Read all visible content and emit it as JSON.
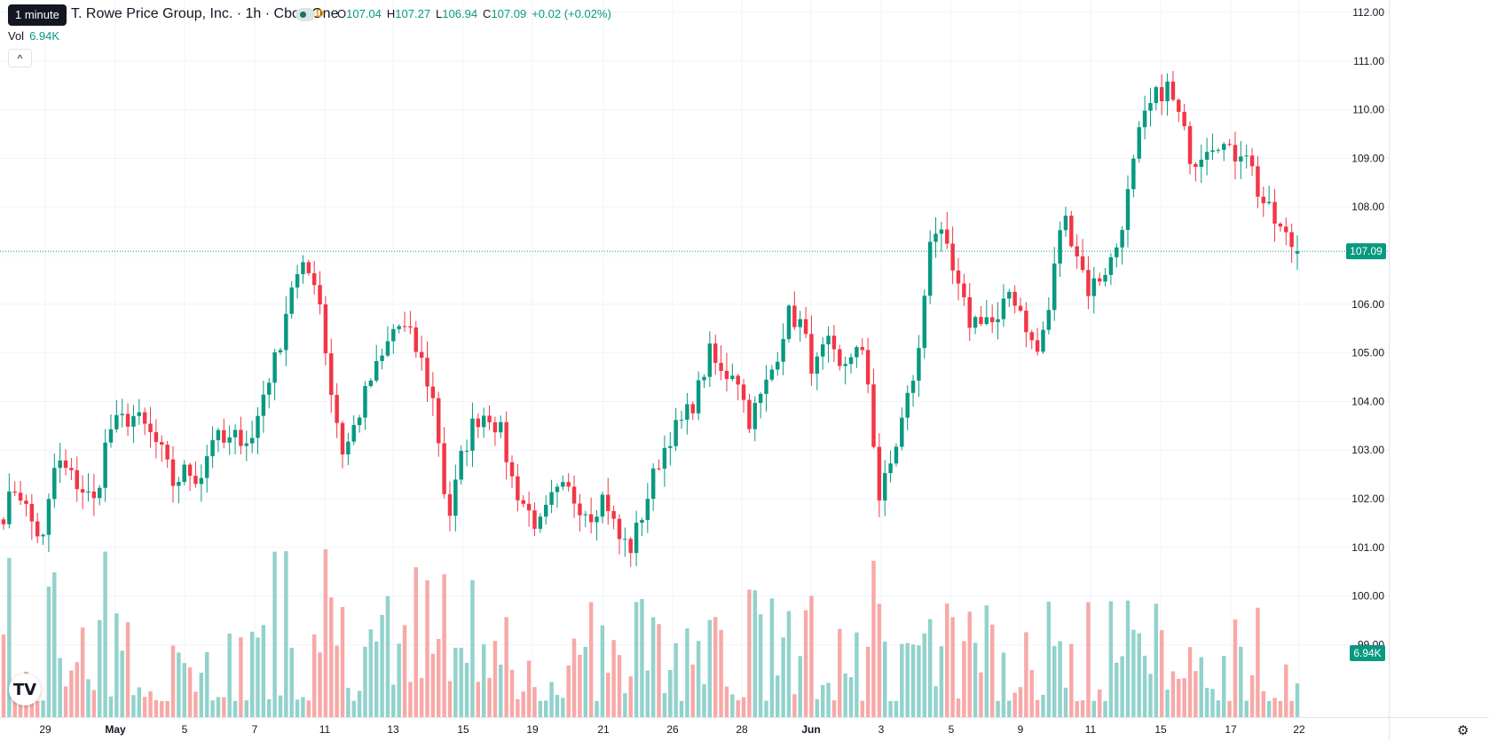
{
  "header": {
    "tooltip": "1 minute",
    "title": "T. Rowe Price Group, Inc. · 1h · Cboe One",
    "flag": "D",
    "open_label": "O",
    "open": "107.04",
    "high_label": "H",
    "high": "107.27",
    "low_label": "L",
    "low": "106.94",
    "close_label": "C",
    "close": "107.09",
    "change": "+0.02 (+0.02%)"
  },
  "volume_legend": {
    "label": "Vol",
    "value": "6.94K"
  },
  "collapse_glyph": "^",
  "logo_text": "TV",
  "settings_glyph": "⚙",
  "colors": {
    "up": "#089981",
    "down": "#f23645",
    "up_vol": "#92d2cc",
    "down_vol": "#f7a9a7",
    "grid": "#f0f3fa",
    "price_line": "#089981"
  },
  "chart_data": {
    "type": "candlestick",
    "ylim": [
      99,
      112
    ],
    "y_ticks": [
      "112.00",
      "111.00",
      "110.00",
      "109.00",
      "108.00",
      "107.00",
      "106.00",
      "105.00",
      "104.00",
      "103.00",
      "102.00",
      "101.00",
      "100.00",
      "99.00"
    ],
    "x_ticks": [
      "29",
      "May",
      "5",
      "7",
      "11",
      "13",
      "15",
      "19",
      "21",
      "26",
      "28",
      "Jun",
      "3",
      "5",
      "9",
      "11",
      "15",
      "17",
      "22"
    ],
    "last_price": 107.09,
    "last_price_label": "107.09",
    "last_volume_label": "6.94K",
    "grid": true,
    "anchors": [
      [
        101.7,
        "29"
      ],
      [
        102.3,
        "29"
      ],
      [
        101.6,
        "29"
      ],
      [
        101.1,
        "29"
      ],
      [
        102.8,
        "29"
      ],
      [
        102.5,
        "29"
      ],
      [
        102.2,
        "May"
      ],
      [
        101.9,
        "May"
      ],
      [
        103.4,
        "May"
      ],
      [
        103.6,
        "May"
      ],
      [
        103.7,
        "May"
      ],
      [
        103.4,
        "May"
      ],
      [
        103.0,
        "May"
      ],
      [
        102.3,
        "May"
      ],
      [
        102.6,
        "May"
      ],
      [
        102.4,
        "May"
      ],
      [
        103.3,
        "May"
      ],
      [
        103.1,
        "May"
      ],
      [
        103.3,
        "5"
      ],
      [
        103.2,
        "5"
      ],
      [
        104.3,
        "5"
      ],
      [
        105.0,
        "5"
      ],
      [
        106.4,
        "5"
      ],
      [
        106.7,
        "7"
      ],
      [
        106.5,
        "7"
      ],
      [
        104.3,
        "7"
      ],
      [
        102.9,
        "7"
      ],
      [
        103.6,
        "7"
      ],
      [
        104.4,
        "7"
      ],
      [
        104.9,
        "11"
      ],
      [
        105.6,
        "11"
      ],
      [
        105.4,
        "11"
      ],
      [
        104.8,
        "11"
      ],
      [
        103.9,
        "11"
      ],
      [
        101.5,
        "13"
      ],
      [
        102.8,
        "13"
      ],
      [
        103.6,
        "13"
      ],
      [
        103.8,
        "13"
      ],
      [
        103.4,
        "13"
      ],
      [
        102.3,
        "15"
      ],
      [
        101.8,
        "15"
      ],
      [
        101.4,
        "15"
      ],
      [
        102.0,
        "15"
      ],
      [
        102.2,
        "19"
      ],
      [
        101.9,
        "19"
      ],
      [
        101.7,
        "19"
      ],
      [
        102.1,
        "19"
      ],
      [
        101.2,
        "21"
      ],
      [
        101.0,
        "21"
      ],
      [
        101.8,
        "21"
      ],
      [
        102.7,
        "26"
      ],
      [
        103.3,
        "26"
      ],
      [
        103.6,
        "26"
      ],
      [
        104.1,
        "26"
      ],
      [
        105.0,
        "28"
      ],
      [
        104.5,
        "28"
      ],
      [
        104.7,
        "28"
      ],
      [
        103.6,
        "28"
      ],
      [
        104.1,
        "28"
      ],
      [
        104.8,
        "28"
      ],
      [
        105.8,
        "Jun"
      ],
      [
        105.6,
        "Jun"
      ],
      [
        104.6,
        "Jun"
      ],
      [
        105.2,
        "Jun"
      ],
      [
        104.6,
        "Jun"
      ],
      [
        105.1,
        "Jun"
      ],
      [
        104.8,
        "3"
      ],
      [
        102.0,
        "3"
      ],
      [
        102.8,
        "3"
      ],
      [
        103.9,
        "3"
      ],
      [
        104.9,
        "3"
      ],
      [
        107.7,
        "5"
      ],
      [
        107.2,
        "5"
      ],
      [
        106.3,
        "5"
      ],
      [
        105.6,
        "5"
      ],
      [
        105.8,
        "5"
      ],
      [
        105.5,
        "9"
      ],
      [
        106.3,
        "9"
      ],
      [
        105.8,
        "9"
      ],
      [
        104.9,
        "9"
      ],
      [
        105.9,
        "9"
      ],
      [
        107.9,
        "11"
      ],
      [
        107.2,
        "11"
      ],
      [
        106.3,
        "11"
      ],
      [
        106.6,
        "11"
      ],
      [
        107.0,
        "11"
      ],
      [
        108.2,
        "11"
      ],
      [
        109.6,
        "15"
      ],
      [
        110.2,
        "15"
      ],
      [
        110.5,
        "15"
      ],
      [
        109.8,
        "15"
      ],
      [
        108.9,
        "15"
      ],
      [
        109.3,
        "17"
      ],
      [
        109.4,
        "17"
      ],
      [
        109.0,
        "17"
      ],
      [
        109.3,
        "17"
      ],
      [
        108.3,
        "17"
      ],
      [
        107.8,
        "17"
      ],
      [
        107.4,
        "22"
      ],
      [
        107.09,
        "22"
      ]
    ]
  }
}
